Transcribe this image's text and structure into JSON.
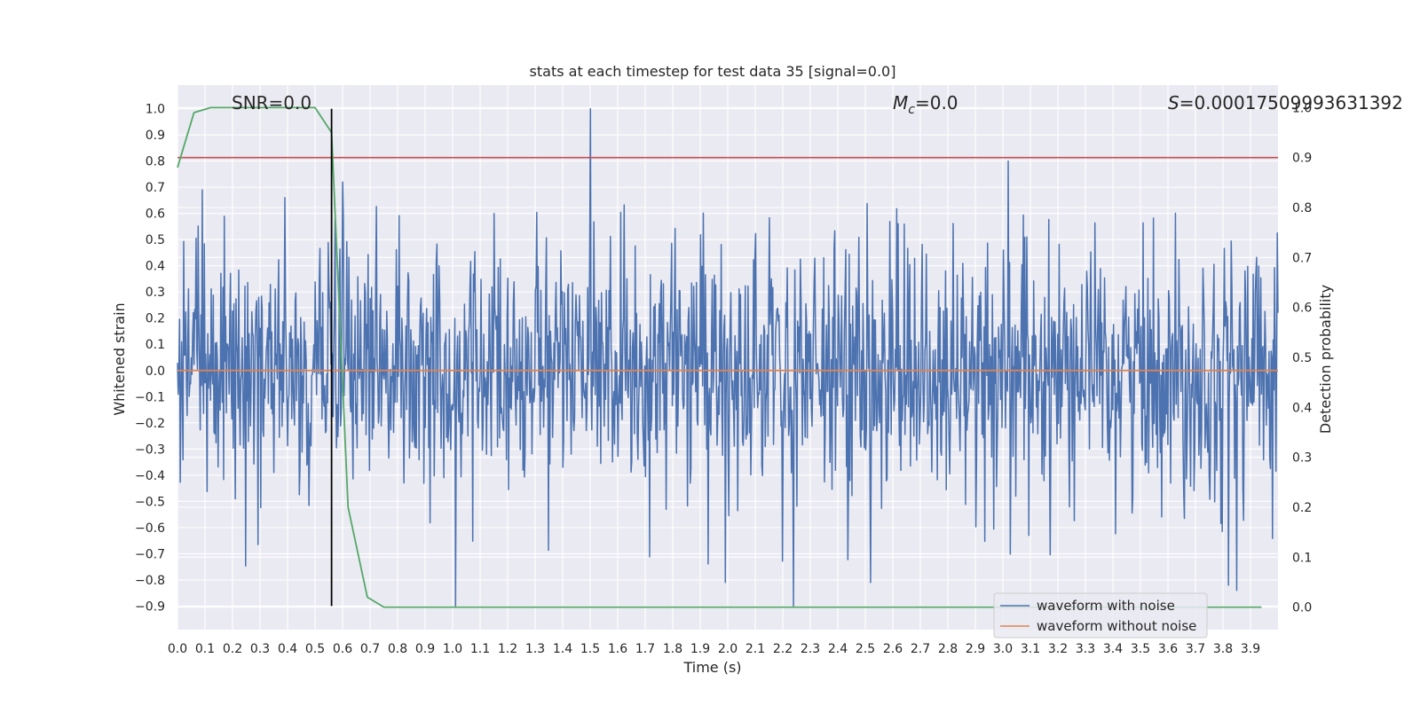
{
  "chart_data": {
    "type": "line",
    "title": "stats at each timestep for test data 35 [signal=0.0]",
    "xlabel": "Time (s)",
    "ylabel": "Whitened strain",
    "y2label": "Detection probability",
    "xlim": [
      0.0,
      4.0
    ],
    "ylim": [
      -0.99,
      1.09
    ],
    "y2lim": [
      -0.045,
      1.045
    ],
    "grid": true,
    "legend_position": "bottom-right",
    "x_ticks": [
      0.0,
      0.1,
      0.2,
      0.3,
      0.4,
      0.5,
      0.6,
      0.7,
      0.8,
      0.9,
      1.0,
      1.1,
      1.2,
      1.3,
      1.4,
      1.5,
      1.6,
      1.7,
      1.8,
      1.9,
      2.0,
      2.1,
      2.2,
      2.3,
      2.4,
      2.5,
      2.6,
      2.7,
      2.8,
      2.9,
      3.0,
      3.1,
      3.2,
      3.3,
      3.4,
      3.5,
      3.6,
      3.7,
      3.8,
      3.9
    ],
    "y_ticks": [
      1.0,
      0.9,
      0.8,
      0.7,
      0.6,
      0.5,
      0.4,
      0.3,
      0.2,
      0.1,
      0.0,
      -0.1,
      -0.2,
      -0.3,
      -0.4,
      -0.5,
      -0.6,
      -0.7,
      -0.8,
      -0.9
    ],
    "y2_ticks": [
      1.0,
      0.9,
      0.8,
      0.7,
      0.6,
      0.5,
      0.4,
      0.3,
      0.2,
      0.1,
      0.0
    ],
    "annotations": {
      "snr": "SNR=0.0",
      "mc_symbol": "M",
      "mc_sub": "c",
      "mc_value": "=0.0",
      "s_symbol": "S",
      "s_value": "=0.00017509993631392"
    },
    "legend": {
      "noise": "waveform with noise",
      "clean": "waveform without noise"
    },
    "colors": {
      "noise": "#4c72b0",
      "clean": "#dd8452",
      "probability": "#55a868",
      "threshold": "#c44e52",
      "marker": "#000000",
      "background": "#eaeaf2",
      "grid": "#ffffff"
    },
    "series": [
      {
        "name": "waveform with noise",
        "axis": "left",
        "kind": "noise",
        "sample_count": 1600,
        "notable_points": [
          {
            "x": 1.5,
            "y": 1.0
          },
          {
            "x": 3.02,
            "y": 0.8
          },
          {
            "x": 0.09,
            "y": 0.69
          },
          {
            "x": 0.39,
            "y": 0.66
          },
          {
            "x": 0.6,
            "y": 0.72
          },
          {
            "x": 1.01,
            "y": -0.9
          },
          {
            "x": 2.24,
            "y": -0.9
          },
          {
            "x": 3.82,
            "y": -0.82
          },
          {
            "x": 3.85,
            "y": -0.84
          },
          {
            "x": 1.99,
            "y": -0.81
          },
          {
            "x": 2.52,
            "y": -0.81
          }
        ]
      },
      {
        "name": "waveform without noise",
        "axis": "left",
        "x": [
          0.0,
          4.0
        ],
        "y": [
          0.0,
          0.0
        ]
      },
      {
        "axis": "right",
        "x": [
          0.0,
          0.06,
          0.12,
          0.19,
          0.25,
          0.31,
          0.37,
          0.44,
          0.5,
          0.56,
          0.62,
          0.69,
          0.75,
          0.81,
          1.0,
          2.0,
          3.0,
          3.94
        ],
        "y": [
          0.88,
          0.99,
          1.0,
          1.0,
          1.0,
          1.0,
          1.0,
          1.0,
          1.0,
          0.95,
          0.2,
          0.02,
          0.0,
          0.0,
          0.0,
          0.0,
          0.0,
          0.0
        ]
      },
      {
        "axis": "right",
        "x": [
          0.0,
          4.0
        ],
        "y": [
          0.9,
          0.9
        ]
      },
      {
        "axis": "left",
        "x": [
          0.56,
          0.56
        ],
        "y": [
          -0.9,
          1.0
        ]
      }
    ]
  }
}
